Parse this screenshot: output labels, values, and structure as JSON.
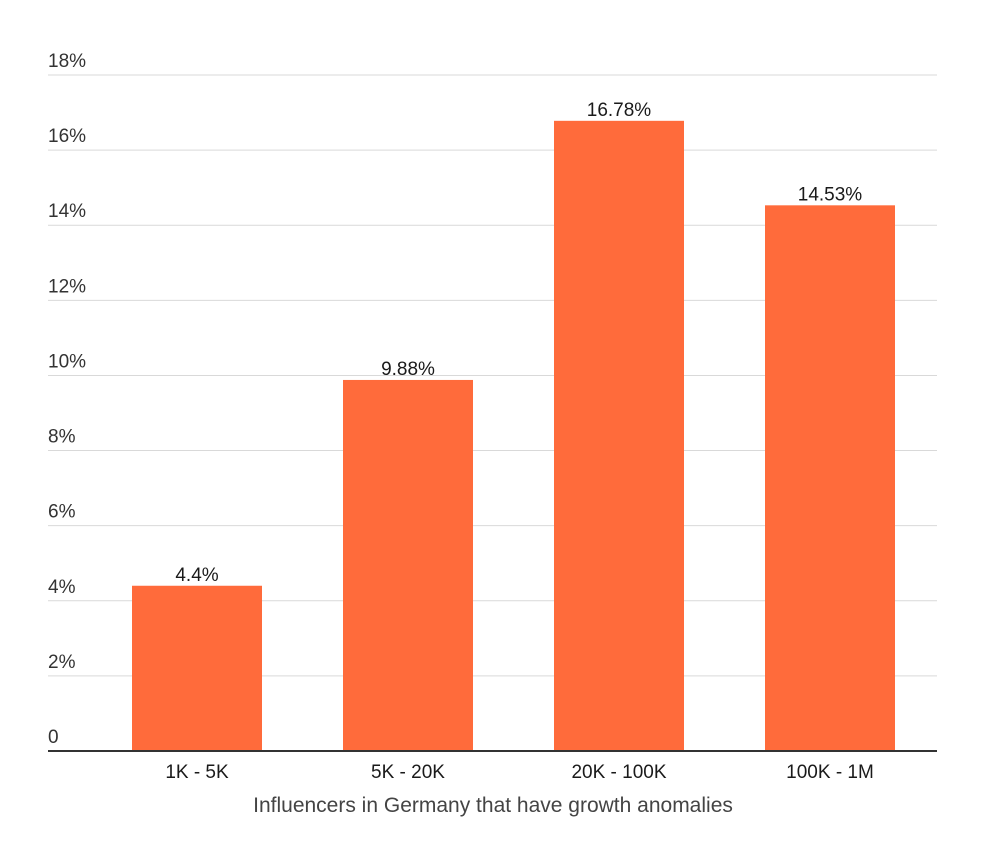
{
  "chart_data": {
    "type": "bar",
    "categories": [
      "1K - 5K",
      "5K - 20K",
      "20K - 100K",
      "100K - 1M"
    ],
    "values": [
      4.4,
      9.88,
      16.78,
      14.53
    ],
    "data_labels": [
      "4.4%",
      "9.88%",
      "16.78%",
      "14.53%"
    ],
    "title": "",
    "xlabel": "Influencers in Germany that have growth anomalies",
    "ylabel": "",
    "ylim": [
      0,
      18
    ],
    "yticks": [
      {
        "value": 0,
        "label": "0"
      },
      {
        "value": 2,
        "label": "2%"
      },
      {
        "value": 4,
        "label": "4%"
      },
      {
        "value": 6,
        "label": "6%"
      },
      {
        "value": 8,
        "label": "8%"
      },
      {
        "value": 10,
        "label": "10%"
      },
      {
        "value": 12,
        "label": "12%"
      },
      {
        "value": 14,
        "label": "14%"
      },
      {
        "value": 16,
        "label": "16%"
      },
      {
        "value": 18,
        "label": "18%"
      }
    ],
    "grid": true,
    "legend": "none",
    "bar_color": "#ff6b3b"
  }
}
